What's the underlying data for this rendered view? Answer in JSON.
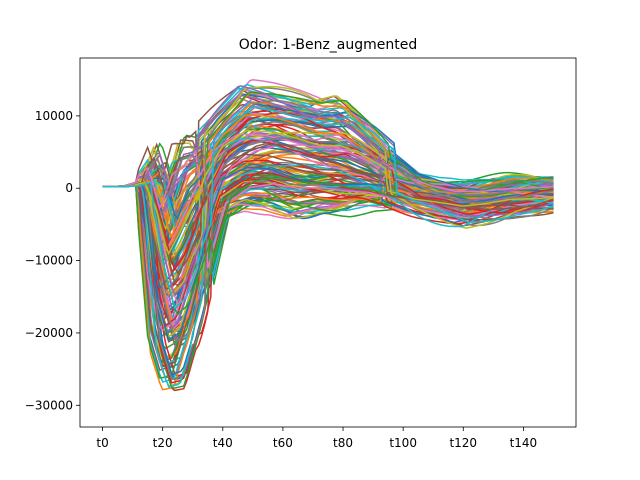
{
  "chart_data": {
    "type": "line",
    "title": "Odor: 1-Benz_augmented",
    "xlabel": "",
    "ylabel": "",
    "x_range": [
      0,
      150
    ],
    "xlim": [
      -7.5,
      157.5
    ],
    "ylim": [
      -33000,
      18000
    ],
    "x_ticks": [
      {
        "value": 0,
        "label": "t0"
      },
      {
        "value": 20,
        "label": "t20"
      },
      {
        "value": 40,
        "label": "t40"
      },
      {
        "value": 60,
        "label": "t60"
      },
      {
        "value": 80,
        "label": "t80"
      },
      {
        "value": 100,
        "label": "t100"
      },
      {
        "value": 120,
        "label": "t120"
      },
      {
        "value": 140,
        "label": "t140"
      }
    ],
    "y_ticks": [
      {
        "value": 10000,
        "label": "10000"
      },
      {
        "value": 0,
        "label": "0"
      },
      {
        "value": -10000,
        "label": "−10000"
      },
      {
        "value": -20000,
        "label": "−20000"
      },
      {
        "value": -30000,
        "label": "−30000"
      }
    ],
    "grid": false,
    "legend": "none",
    "colors": [
      "#1f77b4",
      "#ff7f0e",
      "#2ca02c",
      "#d62728",
      "#9467bd",
      "#8c564b",
      "#e377c2",
      "#7f7f7f",
      "#bcbd22",
      "#17becf"
    ],
    "series_profile": {
      "x": [
        0,
        10,
        14,
        18,
        22,
        26,
        32,
        40,
        48,
        56,
        64,
        72,
        80,
        88,
        96,
        104,
        112,
        120,
        128,
        136,
        144,
        150
      ],
      "mean": [
        200,
        300,
        800,
        -6000,
        -13000,
        -11000,
        -4000,
        3000,
        5000,
        5500,
        5000,
        4000,
        3500,
        2500,
        1000,
        -500,
        -1000,
        -1500,
        -1500,
        -1000,
        -800,
        -500
      ],
      "upper": [
        600,
        900,
        2000,
        9000,
        4000,
        11000,
        9000,
        12000,
        16000,
        15000,
        14000,
        13000,
        13500,
        10000,
        6000,
        3000,
        1500,
        1000,
        1500,
        2000,
        2000,
        1500
      ],
      "lower": [
        -800,
        -700,
        -2000,
        -26000,
        -31000,
        -31000,
        -22000,
        -6000,
        -4000,
        -4000,
        -5000,
        -4000,
        -4000,
        -3000,
        -3000,
        -4000,
        -5000,
        -6000,
        -5000,
        -4000,
        -3500,
        -3000
      ]
    },
    "series_count": 150
  }
}
